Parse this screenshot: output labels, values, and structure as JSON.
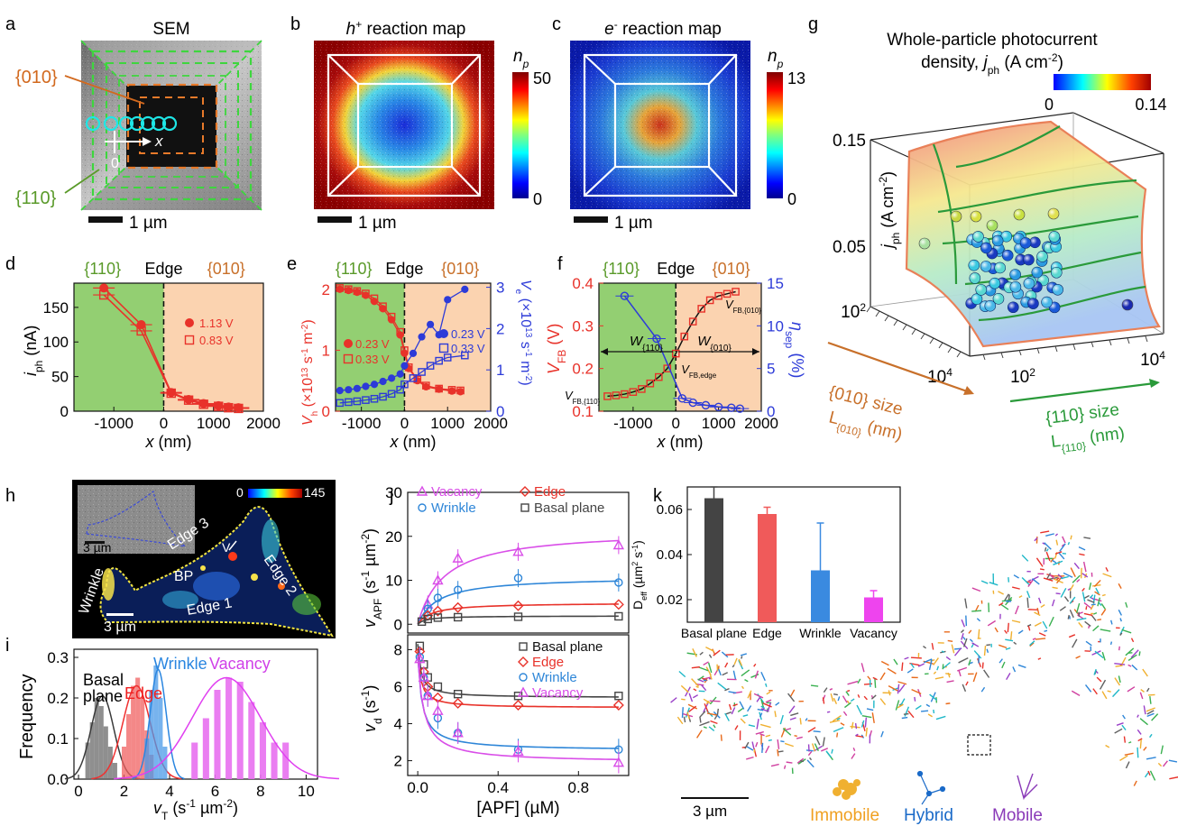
{
  "panels": {
    "a": {
      "letter": "a",
      "title": "SEM",
      "facet010": "{010}",
      "facet110": "{110}",
      "axis_x": "x",
      "origin": "0",
      "scale": "1 µm"
    },
    "b": {
      "letter": "b",
      "title_sym": "h",
      "title_sup": "+",
      "title_rest": " reaction map",
      "cb_label": "n",
      "cb_sub": "p",
      "cb_max": "50",
      "cb_min": "0",
      "scale": "1 µm"
    },
    "c": {
      "letter": "c",
      "title_sym": "e",
      "title_sup": "-",
      "title_rest": " reaction map",
      "cb_label": "n",
      "cb_sub": "p",
      "cb_max": "13",
      "cb_min": "0",
      "scale": "1 µm"
    },
    "g": {
      "letter": "g",
      "title1": "Whole-particle photocurrent",
      "title2_pre": "density, ",
      "title2_sym": "j",
      "title2_sub": "ph",
      "title2_unit": " (A cm",
      "title2_sup": "-2",
      "title2_end": ")",
      "cb_min": "0",
      "cb_max": "0.14",
      "z_hi": "0.15",
      "z_mid": "0.05",
      "z_axis": "j",
      "z_axis_sub": "ph",
      "z_axis_unit": " (A cm",
      "z_axis_sup": "-2",
      "z_axis_end": ")",
      "z_lo": "10",
      "z_lo_sup": "2",
      "x_tick_hi": "10",
      "x_tick_hi_sup": "4",
      "x_tick_lo": "10",
      "x_tick_lo_sup": "2",
      "y_tick_hi": "10",
      "y_tick_hi_sup": "4",
      "lab010_1": "{010} size",
      "lab010_2": "L",
      "lab010_sub": "{010}",
      "lab010_unit": "  (nm)",
      "lab110_1": "{110} size",
      "lab110_2": "L",
      "lab110_sub": "{110}",
      "lab110_unit": "  (nm)"
    },
    "h": {
      "letter": "h",
      "cb_min": "0",
      "cb_max": "145",
      "inset_scale": "3 µm",
      "scale": "3 µm",
      "lbl_edge1": "Edge 1",
      "lbl_edge2": "Edge 2",
      "lbl_edge3": "Edge 3",
      "lbl_bp": "BP",
      "lbl_wrinkle": "Wrinkle",
      "lbl_v": "V"
    },
    "k": {
      "letter": "k",
      "scale": "3 µm",
      "legend_immobile": "Immobile",
      "legend_hybrid": "Hybrid",
      "legend_mobile": "Mobile"
    }
  },
  "colors": {
    "green_region": "#93cf72",
    "orange_region": "#fbd3b0",
    "red": "#e8322a",
    "blue": "#2d3bd8",
    "magenta": "#d94ee8",
    "sky": "#2e86d8",
    "gray": "#454545"
  },
  "chart_data": [
    {
      "panel": "d",
      "type": "line",
      "letter": "d",
      "top_labels": [
        "{110}",
        "Edge",
        "{010}"
      ],
      "xlabel": "x (nm)",
      "ylabel": "i",
      "ylabel_sub": "ph",
      "ylabel_unit": " (nA)",
      "xlim": [
        -1800,
        2000
      ],
      "ylim": [
        0,
        185
      ],
      "xticks": [
        "-1000",
        "0",
        "1000",
        "2000"
      ],
      "yticks": [
        "0",
        "50",
        "100",
        "150"
      ],
      "series": [
        {
          "name": "1.13 V",
          "marker": "filled-circle",
          "x": [
            -1200,
            -450,
            150,
            500,
            800,
            1100,
            1300,
            1500
          ],
          "y": [
            178,
            125,
            27,
            17,
            11,
            8,
            6,
            5
          ]
        },
        {
          "name": "0.83 V",
          "marker": "open-square",
          "x": [
            -1200,
            -450,
            150,
            500,
            800,
            1100,
            1300,
            1500
          ],
          "y": [
            168,
            116,
            26,
            16,
            10,
            7,
            5,
            4
          ]
        }
      ]
    },
    {
      "panel": "e",
      "type": "line",
      "letter": "e",
      "top_labels": [
        "{110}",
        "Edge",
        "{010}"
      ],
      "xlabel": "x (nm)",
      "ylabel_left": "V",
      "ylabel_left_sub": "h",
      "ylabel_left_unit": " (×10",
      "ylabel_left_sup": "13",
      "ylabel_left_end": " s",
      "ylabel_left_sup2": "-1",
      "ylabel_left_end2": " m",
      "ylabel_left_sup3": "-2",
      "ylabel_left_end3": ")",
      "ylabel_right": "V",
      "ylabel_right_sub": "e",
      "ylabel_right_unit": " (×10",
      "ylabel_right_sup": "13",
      "ylabel_right_end": " s",
      "ylabel_right_sup2": "-1",
      "ylabel_right_end2": " m",
      "ylabel_right_sup3": "-2",
      "ylabel_right_end3": ")",
      "xlim": [
        -1600,
        2000
      ],
      "ylim_left": [
        0,
        2.1
      ],
      "ylim_right": [
        0,
        3.1
      ],
      "xticks": [
        "-1000",
        "0",
        "1000",
        "2000"
      ],
      "yticks_left": [
        "0",
        "1",
        "2"
      ],
      "yticks_right": [
        "0",
        "1",
        "2",
        "3"
      ],
      "series": [
        {
          "name": "0.23 V",
          "axis": "left",
          "marker": "filled-circle",
          "x": [
            -1500,
            -1300,
            -1100,
            -900,
            -700,
            -500,
            -300,
            -100,
            0,
            100,
            300,
            500,
            800,
            1100,
            1300
          ],
          "y": [
            2.0,
            1.98,
            1.95,
            1.9,
            1.8,
            1.68,
            1.5,
            1.25,
            0.95,
            0.7,
            0.5,
            0.4,
            0.36,
            0.33,
            0.32
          ]
        },
        {
          "name": "0.33 V",
          "axis": "left",
          "marker": "open-square",
          "x": [
            -1500,
            -1300,
            -1100,
            -900,
            -700,
            -500,
            -300,
            -100,
            0,
            100,
            300,
            500,
            800,
            1100,
            1300
          ],
          "y": [
            2.02,
            2.0,
            1.97,
            1.93,
            1.85,
            1.72,
            1.55,
            1.3,
            1.0,
            0.72,
            0.52,
            0.42,
            0.37,
            0.35,
            0.34
          ]
        },
        {
          "name": "0.23 V",
          "axis": "right",
          "marker": "filled-circle",
          "x": [
            -1500,
            -1300,
            -1100,
            -900,
            -700,
            -500,
            -300,
            -100,
            0,
            200,
            400,
            600,
            800,
            1000,
            1400
          ],
          "y": [
            0.5,
            0.52,
            0.55,
            0.6,
            0.65,
            0.72,
            0.8,
            0.9,
            1.1,
            1.4,
            1.8,
            2.1,
            1.85,
            2.7,
            2.95
          ]
        },
        {
          "name": "0.33 V",
          "axis": "right",
          "marker": "open-square",
          "x": [
            -1500,
            -1300,
            -1100,
            -900,
            -700,
            -500,
            -300,
            -100,
            0,
            200,
            400,
            600,
            800,
            1000,
            1400
          ],
          "y": [
            0.2,
            0.22,
            0.24,
            0.27,
            0.3,
            0.35,
            0.42,
            0.52,
            0.65,
            0.8,
            0.95,
            1.1,
            1.22,
            1.3,
            1.35
          ]
        }
      ]
    },
    {
      "panel": "f",
      "type": "line",
      "letter": "f",
      "top_labels": [
        "{110}",
        "Edge",
        "{010}"
      ],
      "xlabel": "x (nm)",
      "ylabel_left": "V",
      "ylabel_left_sub": "FB",
      "ylabel_left_unit": " (V)",
      "ylabel_right": "η",
      "ylabel_right_sub": "sep",
      "ylabel_right_unit": " (%)",
      "xlim": [
        -1800,
        2000
      ],
      "ylim_left": [
        0.1,
        0.4
      ],
      "ylim_right": [
        0,
        15
      ],
      "xticks": [
        "-1000",
        "0",
        "1000",
        "2000"
      ],
      "yticks_left": [
        "0.1",
        "0.2",
        "0.3",
        "0.4"
      ],
      "yticks_right": [
        "0",
        "5",
        "10",
        "15"
      ],
      "annotations": {
        "w110": "W",
        "w110_sub": "{110}",
        "w010": "W",
        "w010_sub": "{010}",
        "vfb110": "V",
        "vfb110_sub": "FB,{110}",
        "vfbedge": "V",
        "vfbedge_sub": "FB,edge",
        "vfb010": "V",
        "vfb010_sub": "FB,{010}"
      },
      "series": [
        {
          "name": "V_FB",
          "axis": "left",
          "marker": "open-square",
          "x": [
            -1600,
            -1400,
            -1200,
            -1000,
            -800,
            -600,
            -400,
            -200,
            0,
            200,
            400,
            600,
            800,
            1000,
            1200,
            1400
          ],
          "y": [
            0.135,
            0.137,
            0.14,
            0.145,
            0.152,
            0.165,
            0.18,
            0.2,
            0.235,
            0.275,
            0.31,
            0.34,
            0.36,
            0.37,
            0.375,
            0.38
          ]
        },
        {
          "name": "η_sep",
          "axis": "right",
          "marker": "open-circle",
          "x": [
            -1200,
            -450,
            150,
            400,
            700,
            1000,
            1300,
            1500
          ],
          "y": [
            13.5,
            8.5,
            1.5,
            1.0,
            0.7,
            0.5,
            0.4,
            0.3
          ]
        }
      ]
    },
    {
      "panel": "i",
      "type": "bar",
      "letter": "i",
      "xlabel": "v",
      "xlabel_sub": "T",
      "xlabel_unit": " (s",
      "xlabel_sup": "-1",
      "xlabel_end": " µm",
      "xlabel_sup2": "-2",
      "xlabel_end2": ")",
      "ylabel": "Frequency",
      "xlim": [
        -0.2,
        10.5
      ],
      "ylim": [
        0,
        0.32
      ],
      "xticks": [
        "0",
        "2",
        "4",
        "6",
        "8",
        "10"
      ],
      "yticks": [
        "0.0",
        "0.1",
        "0.2",
        "0.3"
      ],
      "labels": {
        "basal1": "Basal",
        "basal2": "plane",
        "edge": "Edge",
        "wrinkle": "Wrinkle",
        "vacancy": "Vacancy"
      },
      "series": [
        {
          "name": "Basal plane",
          "x": [
            0.4,
            0.6,
            0.8,
            1.0,
            1.2,
            1.4,
            1.6
          ],
          "y": [
            0.09,
            0.14,
            0.2,
            0.18,
            0.13,
            0.08,
            0.04
          ],
          "fit": {
            "mu": 1.05,
            "sigma": 0.5,
            "peak": 0.205
          }
        },
        {
          "name": "Edge",
          "x": [
            2.0,
            2.2,
            2.4,
            2.6,
            2.8,
            3.0,
            3.2
          ],
          "y": [
            0.08,
            0.16,
            0.23,
            0.25,
            0.2,
            0.12,
            0.06
          ],
          "fit": {
            "mu": 2.55,
            "sigma": 0.6,
            "peak": 0.23
          }
        },
        {
          "name": "Wrinkle",
          "x": [
            3.0,
            3.2,
            3.4,
            3.6,
            3.8
          ],
          "y": [
            0.1,
            0.22,
            0.28,
            0.2,
            0.08
          ],
          "fit": {
            "mu": 3.5,
            "sigma": 0.35,
            "peak": 0.27
          }
        },
        {
          "name": "Vacancy",
          "x": [
            5.1,
            5.6,
            6.1,
            6.6,
            7.1,
            7.6,
            8.1,
            8.6,
            9.1
          ],
          "y": [
            0.09,
            0.15,
            0.22,
            0.25,
            0.24,
            0.19,
            0.14,
            0.09,
            0.09
          ],
          "fit": {
            "mu": 6.5,
            "sigma": 1.5,
            "peak": 0.25
          }
        }
      ]
    },
    {
      "panel": "j_top",
      "type": "scatter",
      "letter": "j",
      "ylabel": "v",
      "ylabel_sub": "APF",
      "ylabel_unit": " (s",
      "ylabel_sup": "-1",
      "ylabel_end": " µm",
      "ylabel_sup2": "-2",
      "ylabel_end2": ")",
      "xlim": [
        -0.05,
        1.05
      ],
      "ylim": [
        -2,
        30
      ],
      "yticks": [
        "0",
        "10",
        "20",
        "30"
      ],
      "series": [
        {
          "name": "Vacancy",
          "marker": "open-triangle",
          "x": [
            0.05,
            0.1,
            0.2,
            0.5,
            1.0
          ],
          "y": [
            4.5,
            10,
            15,
            16.5,
            18
          ],
          "vmax": 21.5,
          "km": 0.13
        },
        {
          "name": "Wrinkle",
          "marker": "open-circle",
          "x": [
            0.05,
            0.1,
            0.2,
            0.5,
            1.0
          ],
          "y": [
            3.5,
            6,
            7.8,
            10.5,
            9.5
          ],
          "vmax": 10.8,
          "km": 0.1
        },
        {
          "name": "Edge",
          "marker": "open-diamond",
          "x": [
            0.05,
            0.1,
            0.2,
            0.5,
            1.0
          ],
          "y": [
            2,
            3,
            3.8,
            4.2,
            4.5
          ],
          "vmax": 4.9,
          "km": 0.07
        },
        {
          "name": "Basal plane",
          "marker": "open-square",
          "x": [
            0.02,
            0.05,
            0.1,
            0.2,
            0.5,
            1.0
          ],
          "y": [
            0.6,
            1.2,
            1.5,
            1.6,
            1.7,
            1.8
          ],
          "vmax": 1.9,
          "km": 0.04
        }
      ]
    },
    {
      "panel": "j_bottom",
      "type": "scatter",
      "xlabel": "[APF] (µM)",
      "ylabel": "v",
      "ylabel_sub": "d",
      "ylabel_unit": " (s",
      "ylabel_sup": "-1",
      "ylabel_end": ")",
      "xlim": [
        -0.05,
        1.05
      ],
      "ylim": [
        1.2,
        8.8
      ],
      "xticks": [
        "0.0",
        "0.4",
        "0.8"
      ],
      "yticks": [
        "2",
        "4",
        "6",
        "8"
      ],
      "series": [
        {
          "name": "Basal plane",
          "marker": "open-square",
          "x": [
            0.01,
            0.03,
            0.05,
            0.1,
            0.2,
            0.5,
            1.0
          ],
          "y": [
            8.2,
            7.2,
            6.5,
            6.0,
            5.6,
            5.5,
            5.5
          ],
          "base": 5.4,
          "amp": 2.9,
          "k": 0.06
        },
        {
          "name": "Edge",
          "marker": "open-diamond",
          "x": [
            0.01,
            0.03,
            0.05,
            0.1,
            0.2,
            0.5,
            1.0
          ],
          "y": [
            7.9,
            6.8,
            6.0,
            5.4,
            5.1,
            5.0,
            5.0
          ],
          "base": 4.85,
          "amp": 3.1,
          "k": 0.06
        },
        {
          "name": "Wrinkle",
          "marker": "open-circle",
          "x": [
            0.01,
            0.03,
            0.05,
            0.1,
            0.2,
            0.5,
            1.0
          ],
          "y": [
            7.6,
            6.5,
            5.5,
            4.3,
            3.5,
            2.6,
            2.6
          ],
          "base": 2.55,
          "amp": 5.1,
          "k": 0.09
        },
        {
          "name": "Vacancy",
          "marker": "open-triangle",
          "x": [
            0.01,
            0.03,
            0.05,
            0.1,
            0.2,
            0.5,
            1.0
          ],
          "y": [
            7.5,
            6.5,
            5.5,
            4.7,
            3.5,
            2.5,
            1.9
          ],
          "base": 1.9,
          "amp": 5.7,
          "k": 0.12
        }
      ]
    },
    {
      "panel": "k_inset",
      "type": "bar",
      "ylabel": "D",
      "ylabel_sub": "eff",
      "ylabel_unit": " (µm",
      "ylabel_sup": "2",
      "ylabel_end": " s",
      "ylabel_sup2": "-1",
      "ylabel_end2": ")",
      "categories": [
        "Basal plane",
        "Edge",
        "Wrinkle",
        "Vacancy"
      ],
      "values": [
        0.065,
        0.058,
        0.033,
        0.021
      ],
      "errors": [
        0.005,
        0.003,
        0.021,
        0.003
      ],
      "ylim": [
        0.01,
        0.07
      ],
      "yticks": [
        "0.02",
        "0.04",
        "0.06"
      ],
      "colors": [
        "#444444",
        "#f05a5a",
        "#3a8ae0",
        "#ee44ee"
      ]
    }
  ]
}
